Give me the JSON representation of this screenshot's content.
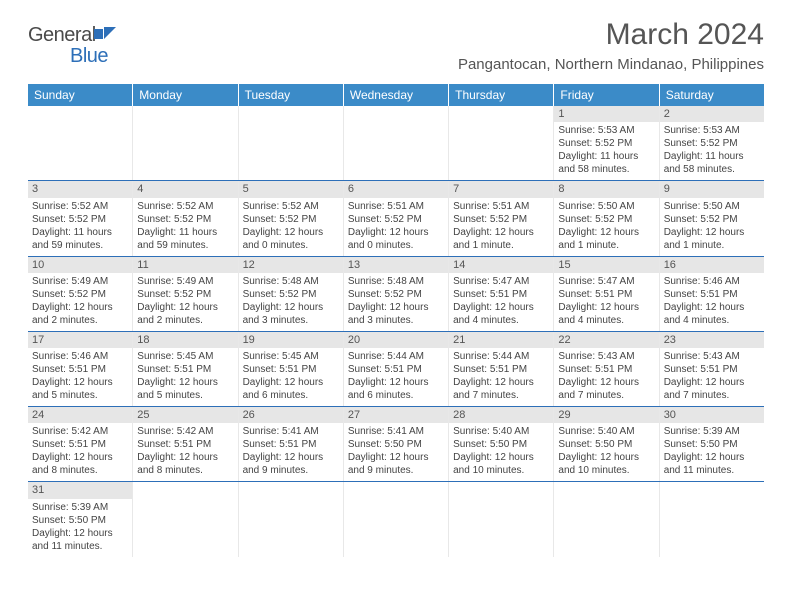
{
  "logo": {
    "part1": "General",
    "part2": "Blue"
  },
  "title": "March 2024",
  "location": "Pangantocan, Northern Mindanao, Philippines",
  "colors": {
    "header_bg": "#3b8bc8",
    "header_text": "#ffffff",
    "daynum_bg": "#e6e6e6",
    "row_border": "#2d6fb8",
    "text": "#444"
  },
  "day_names": [
    "Sunday",
    "Monday",
    "Tuesday",
    "Wednesday",
    "Thursday",
    "Friday",
    "Saturday"
  ],
  "weeks": [
    [
      null,
      null,
      null,
      null,
      null,
      {
        "n": "1",
        "sr": "5:53 AM",
        "ss": "5:52 PM",
        "dl": "11 hours and 58 minutes."
      },
      {
        "n": "2",
        "sr": "5:53 AM",
        "ss": "5:52 PM",
        "dl": "11 hours and 58 minutes."
      }
    ],
    [
      {
        "n": "3",
        "sr": "5:52 AM",
        "ss": "5:52 PM",
        "dl": "11 hours and 59 minutes."
      },
      {
        "n": "4",
        "sr": "5:52 AM",
        "ss": "5:52 PM",
        "dl": "11 hours and 59 minutes."
      },
      {
        "n": "5",
        "sr": "5:52 AM",
        "ss": "5:52 PM",
        "dl": "12 hours and 0 minutes."
      },
      {
        "n": "6",
        "sr": "5:51 AM",
        "ss": "5:52 PM",
        "dl": "12 hours and 0 minutes."
      },
      {
        "n": "7",
        "sr": "5:51 AM",
        "ss": "5:52 PM",
        "dl": "12 hours and 1 minute."
      },
      {
        "n": "8",
        "sr": "5:50 AM",
        "ss": "5:52 PM",
        "dl": "12 hours and 1 minute."
      },
      {
        "n": "9",
        "sr": "5:50 AM",
        "ss": "5:52 PM",
        "dl": "12 hours and 1 minute."
      }
    ],
    [
      {
        "n": "10",
        "sr": "5:49 AM",
        "ss": "5:52 PM",
        "dl": "12 hours and 2 minutes."
      },
      {
        "n": "11",
        "sr": "5:49 AM",
        "ss": "5:52 PM",
        "dl": "12 hours and 2 minutes."
      },
      {
        "n": "12",
        "sr": "5:48 AM",
        "ss": "5:52 PM",
        "dl": "12 hours and 3 minutes."
      },
      {
        "n": "13",
        "sr": "5:48 AM",
        "ss": "5:52 PM",
        "dl": "12 hours and 3 minutes."
      },
      {
        "n": "14",
        "sr": "5:47 AM",
        "ss": "5:51 PM",
        "dl": "12 hours and 4 minutes."
      },
      {
        "n": "15",
        "sr": "5:47 AM",
        "ss": "5:51 PM",
        "dl": "12 hours and 4 minutes."
      },
      {
        "n": "16",
        "sr": "5:46 AM",
        "ss": "5:51 PM",
        "dl": "12 hours and 4 minutes."
      }
    ],
    [
      {
        "n": "17",
        "sr": "5:46 AM",
        "ss": "5:51 PM",
        "dl": "12 hours and 5 minutes."
      },
      {
        "n": "18",
        "sr": "5:45 AM",
        "ss": "5:51 PM",
        "dl": "12 hours and 5 minutes."
      },
      {
        "n": "19",
        "sr": "5:45 AM",
        "ss": "5:51 PM",
        "dl": "12 hours and 6 minutes."
      },
      {
        "n": "20",
        "sr": "5:44 AM",
        "ss": "5:51 PM",
        "dl": "12 hours and 6 minutes."
      },
      {
        "n": "21",
        "sr": "5:44 AM",
        "ss": "5:51 PM",
        "dl": "12 hours and 7 minutes."
      },
      {
        "n": "22",
        "sr": "5:43 AM",
        "ss": "5:51 PM",
        "dl": "12 hours and 7 minutes."
      },
      {
        "n": "23",
        "sr": "5:43 AM",
        "ss": "5:51 PM",
        "dl": "12 hours and 7 minutes."
      }
    ],
    [
      {
        "n": "24",
        "sr": "5:42 AM",
        "ss": "5:51 PM",
        "dl": "12 hours and 8 minutes."
      },
      {
        "n": "25",
        "sr": "5:42 AM",
        "ss": "5:51 PM",
        "dl": "12 hours and 8 minutes."
      },
      {
        "n": "26",
        "sr": "5:41 AM",
        "ss": "5:51 PM",
        "dl": "12 hours and 9 minutes."
      },
      {
        "n": "27",
        "sr": "5:41 AM",
        "ss": "5:50 PM",
        "dl": "12 hours and 9 minutes."
      },
      {
        "n": "28",
        "sr": "5:40 AM",
        "ss": "5:50 PM",
        "dl": "12 hours and 10 minutes."
      },
      {
        "n": "29",
        "sr": "5:40 AM",
        "ss": "5:50 PM",
        "dl": "12 hours and 10 minutes."
      },
      {
        "n": "30",
        "sr": "5:39 AM",
        "ss": "5:50 PM",
        "dl": "12 hours and 11 minutes."
      }
    ],
    [
      {
        "n": "31",
        "sr": "5:39 AM",
        "ss": "5:50 PM",
        "dl": "12 hours and 11 minutes."
      },
      null,
      null,
      null,
      null,
      null,
      null
    ]
  ],
  "labels": {
    "sunrise": "Sunrise:",
    "sunset": "Sunset:",
    "daylight": "Daylight:"
  }
}
